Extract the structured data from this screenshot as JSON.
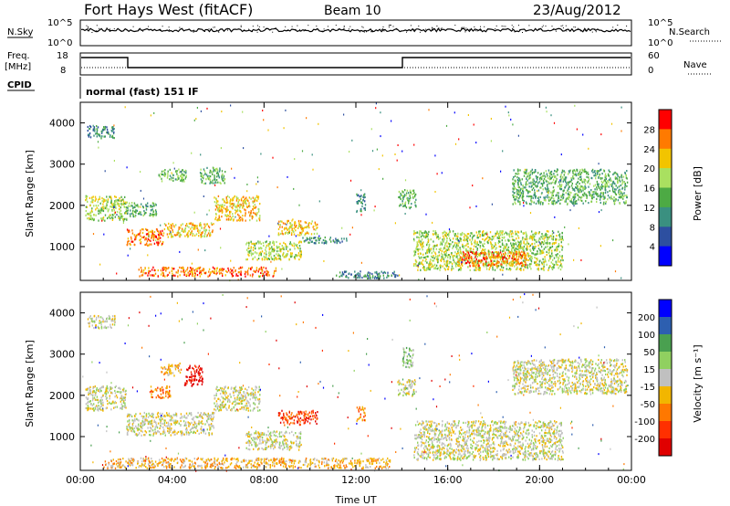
{
  "header": {
    "station": "Fort Hays West (fitACF)",
    "beam": "Beam 10",
    "date": "23/Aug/2012"
  },
  "params": {
    "nsky_label": "N.Sky",
    "nsky_ticks": [
      "10^5",
      "10^0"
    ],
    "nsearch_label": "N.Search",
    "freq_label": "Freq.",
    "freq_unit": "[MHz]",
    "freq_ticks": [
      "18",
      "8"
    ],
    "nave_label": "Nave",
    "nave_ticks": [
      "60",
      "0"
    ],
    "cpid_label": "CPID",
    "cpid_value": "normal (fast) 151 IF"
  },
  "chart_data": [
    {
      "type": "heatmap",
      "panel": "power",
      "xlabel": "Time UT",
      "ylabel": "Slant Range [km]",
      "x_ticks": [
        "00:00",
        "04:00",
        "08:00",
        "12:00",
        "16:00",
        "20:00",
        "00:00"
      ],
      "y_ticks": [
        1000,
        2000,
        3000,
        4000
      ],
      "xlim_hours": [
        0,
        24
      ],
      "ylim_km": [
        180,
        4500
      ],
      "colorbar": {
        "label": "Power [dB]",
        "ticks": [
          "28",
          "24",
          "20",
          "16",
          "12",
          "8",
          "4"
        ],
        "colors": [
          "#ff0000",
          "#ff7a00",
          "#f2c400",
          "#a9e060",
          "#4daa44",
          "#3a9080",
          "#2d4fa0",
          "#0000ff"
        ]
      },
      "regions": [
        {
          "t0": 0.3,
          "t1": 1.5,
          "r0": 3650,
          "r1": 3950,
          "level": 2
        },
        {
          "t0": 0.2,
          "t1": 2.0,
          "r0": 1650,
          "r1": 2250,
          "level": 4
        },
        {
          "t0": 2.0,
          "t1": 3.6,
          "r0": 1050,
          "r1": 1450,
          "level": 6
        },
        {
          "t0": 2.0,
          "t1": 3.3,
          "r0": 1750,
          "r1": 2100,
          "level": 3
        },
        {
          "t0": 3.4,
          "t1": 4.6,
          "r0": 2600,
          "r1": 2900,
          "level": 3
        },
        {
          "t0": 3.6,
          "t1": 5.8,
          "r0": 1250,
          "r1": 1600,
          "level": 5
        },
        {
          "t0": 5.8,
          "t1": 7.8,
          "r0": 1650,
          "r1": 2250,
          "level": 5
        },
        {
          "t0": 5.2,
          "t1": 6.3,
          "r0": 2550,
          "r1": 2950,
          "level": 3
        },
        {
          "t0": 2.5,
          "t1": 8.5,
          "r0": 300,
          "r1": 520,
          "level": 6
        },
        {
          "t0": 7.2,
          "t1": 9.6,
          "r0": 700,
          "r1": 1150,
          "level": 4
        },
        {
          "t0": 8.6,
          "t1": 10.3,
          "r0": 1300,
          "r1": 1650,
          "level": 5
        },
        {
          "t0": 9.6,
          "t1": 11.6,
          "r0": 1100,
          "r1": 1250,
          "level": 2
        },
        {
          "t0": 12.0,
          "t1": 12.4,
          "r0": 1800,
          "r1": 2300,
          "level": 2
        },
        {
          "t0": 13.8,
          "t1": 14.6,
          "r0": 1950,
          "r1": 2400,
          "level": 3
        },
        {
          "t0": 14.5,
          "t1": 21.0,
          "r0": 450,
          "r1": 1400,
          "level": 4
        },
        {
          "t0": 16.4,
          "t1": 19.4,
          "r0": 550,
          "r1": 900,
          "level": 6
        },
        {
          "t0": 18.8,
          "t1": 23.8,
          "r0": 2050,
          "r1": 2900,
          "level": 3
        },
        {
          "t0": 11.0,
          "t1": 13.8,
          "r0": 250,
          "r1": 420,
          "level": 2
        }
      ]
    },
    {
      "type": "heatmap",
      "panel": "velocity",
      "xlabel": "Time UT",
      "ylabel": "Slant Range [km]",
      "x_ticks": [
        "00:00",
        "04:00",
        "08:00",
        "12:00",
        "16:00",
        "20:00",
        "00:00"
      ],
      "y_ticks": [
        1000,
        2000,
        3000,
        4000
      ],
      "xlim_hours": [
        0,
        24
      ],
      "ylim_km": [
        180,
        4500
      ],
      "colorbar": {
        "label": "Velocity [m s⁻¹]",
        "ticks": [
          "200",
          "100",
          "50",
          "15",
          "-15",
          "-50",
          "-100",
          "-200"
        ],
        "colors": [
          "#0000ff",
          "#2d5fb0",
          "#4aa050",
          "#90d060",
          "#c0c0c0",
          "#f2b600",
          "#ff7800",
          "#ff3000",
          "#e00000"
        ]
      },
      "regions": [
        {
          "t0": 0.2,
          "t1": 2.0,
          "r0": 1650,
          "r1": 2250,
          "level": 4
        },
        {
          "t0": 2.0,
          "t1": 5.8,
          "r0": 1050,
          "r1": 1600,
          "level": 4
        },
        {
          "t0": 0.3,
          "t1": 1.5,
          "r0": 3650,
          "r1": 3950,
          "level": 4
        },
        {
          "t0": 3.0,
          "t1": 3.9,
          "r0": 1950,
          "r1": 2250,
          "level": 6
        },
        {
          "t0": 3.5,
          "t1": 4.4,
          "r0": 2500,
          "r1": 2800,
          "level": 5
        },
        {
          "t0": 4.5,
          "t1": 5.3,
          "r0": 2250,
          "r1": 2750,
          "level": 8
        },
        {
          "t0": 5.8,
          "t1": 7.8,
          "r0": 1650,
          "r1": 2250,
          "level": 4
        },
        {
          "t0": 8.6,
          "t1": 10.3,
          "r0": 1300,
          "r1": 1650,
          "level": 7
        },
        {
          "t0": 7.2,
          "t1": 9.6,
          "r0": 700,
          "r1": 1150,
          "level": 4
        },
        {
          "t0": 12.0,
          "t1": 12.4,
          "r0": 1400,
          "r1": 1750,
          "level": 6
        },
        {
          "t0": 1.0,
          "t1": 13.5,
          "r0": 250,
          "r1": 500,
          "level": 5
        },
        {
          "t0": 13.8,
          "t1": 14.6,
          "r0": 2000,
          "r1": 2400,
          "level": 4
        },
        {
          "t0": 14.5,
          "t1": 21.0,
          "r0": 450,
          "r1": 1400,
          "level": 4
        },
        {
          "t0": 18.8,
          "t1": 23.8,
          "r0": 2050,
          "r1": 2900,
          "level": 4
        },
        {
          "t0": 14.0,
          "t1": 14.5,
          "r0": 2700,
          "r1": 3200,
          "level": 3
        }
      ]
    }
  ]
}
